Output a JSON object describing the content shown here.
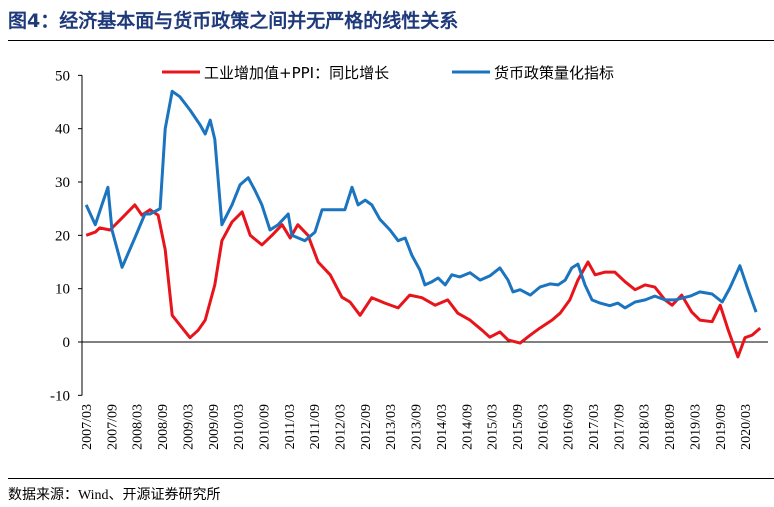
{
  "title": "图4：经济基本面与货币政策之间并无严格的线性关系",
  "source": "数据来源：Wind、开源证券研究所",
  "chart_data": {
    "type": "line",
    "ylim": [
      -10,
      50
    ],
    "yticks": [
      "-10",
      "0",
      "10",
      "20",
      "30",
      "40",
      "50"
    ],
    "xlim": [
      2007.17,
      2020.5
    ],
    "xticks": [
      "2007/03",
      "2007/09",
      "2008/03",
      "2008/09",
      "2009/03",
      "2009/09",
      "2010/03",
      "2010/09",
      "2011/03",
      "2011/09",
      "2012/03",
      "2012/09",
      "2013/03",
      "2013/09",
      "2014/03",
      "2014/09",
      "2015/03",
      "2015/09",
      "2016/03",
      "2016/09",
      "2017/03",
      "2017/09",
      "2018/03",
      "2018/09",
      "2019/03",
      "2019/09",
      "2020/03"
    ],
    "legend_position": "top",
    "grid": false,
    "series": [
      {
        "name": "工业增加值+PPI：同比增长",
        "color": "#e8141b",
        "x": [
          2007.17,
          2007.35,
          2007.44,
          2007.64,
          2007.84,
          2008.13,
          2008.27,
          2008.43,
          2008.59,
          2008.73,
          2008.87,
          2009.02,
          2009.22,
          2009.38,
          2009.52,
          2009.71,
          2009.85,
          2010.05,
          2010.25,
          2010.41,
          2010.64,
          2010.84,
          2011.04,
          2011.2,
          2011.35,
          2011.55,
          2011.75,
          2011.99,
          2012.22,
          2012.38,
          2012.58,
          2012.81,
          2013.07,
          2013.33,
          2013.56,
          2013.8,
          2014.06,
          2014.31,
          2014.51,
          2014.75,
          2014.99,
          2015.14,
          2015.34,
          2015.5,
          2015.74,
          2015.94,
          2016.13,
          2016.37,
          2016.53,
          2016.72,
          2016.88,
          2017.08,
          2017.22,
          2017.42,
          2017.61,
          2017.81,
          2018.01,
          2018.21,
          2018.4,
          2018.6,
          2018.74,
          2018.93,
          2019.13,
          2019.29,
          2019.53,
          2019.69,
          2019.85,
          2020.04,
          2020.18,
          2020.32,
          2020.48
        ],
        "y": [
          20,
          20.6,
          21.4,
          21,
          22.9,
          25.7,
          23.8,
          24.8,
          23.8,
          17.3,
          5,
          3.2,
          0.8,
          2.2,
          4.1,
          10.7,
          19,
          22.5,
          24.4,
          20,
          18.2,
          20,
          22,
          19.5,
          22,
          20,
          15,
          12.6,
          8.4,
          7.5,
          5,
          8.3,
          7.3,
          6.4,
          8.8,
          8.3,
          6.9,
          7.9,
          5.4,
          4.1,
          2.2,
          0.9,
          1.9,
          0.4,
          -0.2,
          1.3,
          2.6,
          4.1,
          5.4,
          7.9,
          11.6,
          15,
          12.6,
          13.1,
          13.1,
          11.3,
          9.8,
          10.7,
          10.3,
          7.9,
          6.9,
          8.8,
          5.6,
          4.1,
          3.8,
          6.9,
          2.2,
          -2.8,
          0.8,
          1.3,
          2.6
        ]
      },
      {
        "name": "货币政策量化指标",
        "color": "#1a74bf",
        "x": [
          2007.17,
          2007.35,
          2007.48,
          2007.6,
          2007.68,
          2007.88,
          2008.13,
          2008.33,
          2008.43,
          2008.63,
          2008.73,
          2008.87,
          2009.02,
          2009.22,
          2009.42,
          2009.52,
          2009.62,
          2009.71,
          2009.85,
          2010.05,
          2010.21,
          2010.37,
          2010.5,
          2010.64,
          2010.8,
          2010.96,
          2011.16,
          2011.23,
          2011.49,
          2011.69,
          2011.83,
          2012.09,
          2012.28,
          2012.42,
          2012.54,
          2012.68,
          2012.81,
          2012.97,
          2013.17,
          2013.33,
          2013.47,
          2013.6,
          2013.76,
          2013.86,
          2014.0,
          2014.12,
          2014.26,
          2014.39,
          2014.55,
          2014.75,
          2014.95,
          2015.14,
          2015.34,
          2015.5,
          2015.6,
          2015.74,
          2015.94,
          2016.13,
          2016.33,
          2016.49,
          2016.63,
          2016.76,
          2016.88,
          2017.02,
          2017.16,
          2017.32,
          2017.51,
          2017.67,
          2017.81,
          2018.01,
          2018.21,
          2018.4,
          2018.6,
          2018.8,
          2019.1,
          2019.29,
          2019.53,
          2019.73,
          2019.88,
          2020.08,
          2020.24,
          2020.4
        ],
        "y": [
          25.7,
          22,
          25.7,
          29,
          21,
          14,
          19.5,
          24,
          24,
          25,
          40,
          47,
          46,
          43.5,
          40.7,
          39,
          41.6,
          38,
          22,
          25.7,
          29.5,
          30.8,
          28.5,
          25.7,
          21,
          22,
          24,
          20,
          19,
          20.6,
          24.8,
          24.8,
          24.8,
          29,
          25.7,
          26.6,
          25.7,
          23,
          21,
          19,
          19.5,
          16.3,
          13.5,
          10.7,
          11.3,
          12,
          10.7,
          12.6,
          12.2,
          13,
          11.6,
          12.4,
          13.9,
          11.6,
          9.4,
          9.8,
          8.8,
          10.3,
          10.9,
          10.7,
          11.6,
          13.9,
          14.6,
          10.7,
          7.9,
          7.3,
          6.8,
          7.3,
          6.4,
          7.5,
          7.9,
          8.6,
          7.9,
          7.9,
          8.6,
          9.4,
          9,
          7.5,
          10.1,
          14.3,
          9.8,
          5.6
        ]
      }
    ]
  }
}
